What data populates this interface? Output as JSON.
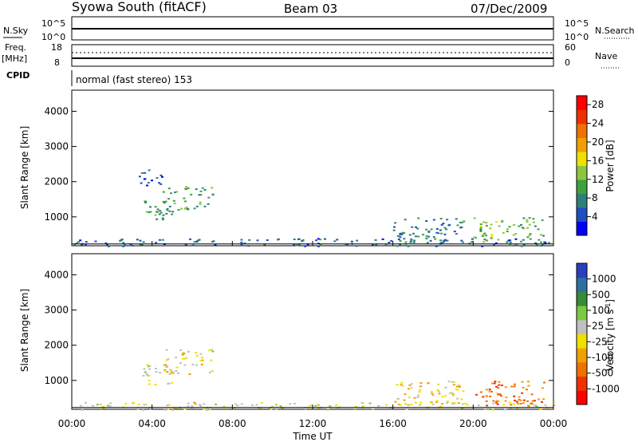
{
  "header": {
    "station": "Syowa South (fitACF)",
    "beam": "Beam 03",
    "date": "07/Dec/2009"
  },
  "strips": {
    "nsky_label": "N.Sky",
    "nsky_ticks": [
      "10^5",
      "10^0"
    ],
    "nsearch_label": "N.Search",
    "nsearch_ticks": [
      "10^5",
      "10^0"
    ],
    "freq_label": "Freq.",
    "freq_unit": "[MHz]",
    "freq_ticks": [
      "18",
      "8"
    ],
    "nave_label": "Nave",
    "nave_ticks": [
      "60",
      "0"
    ],
    "cpid_label": "CPID",
    "cpid_text": "normal (fast stereo) 153"
  },
  "colors": {
    "power": [
      "#0000ff",
      "#1f4fc0",
      "#2e7f7a",
      "#3fa040",
      "#8cc63f",
      "#f0e000",
      "#f0a000",
      "#f07000",
      "#f03000",
      "#ff0000"
    ],
    "velocity": [
      "#2a3fbf",
      "#2e6fa0",
      "#3a8a3a",
      "#7cc840",
      "#c0c0c0",
      "#f0e000",
      "#f0a000",
      "#f07000",
      "#f03000",
      "#ff0000"
    ]
  },
  "chart_data": [
    {
      "type": "heatmap",
      "variable": "Power",
      "xlabel": "Time UT",
      "ylabel": "Slant Range [km]",
      "xlim": [
        "00:00",
        "24:00"
      ],
      "ylim": [
        180,
        4600
      ],
      "x_ticks": [
        "00:00",
        "04:00",
        "08:00",
        "12:00",
        "16:00",
        "20:00",
        "00:00"
      ],
      "y_ticks": [
        1000,
        2000,
        3000,
        4000
      ],
      "colorbar": {
        "label": "Power [dB]",
        "ticks": [
          "4",
          "8",
          "12",
          "16",
          "20",
          "24",
          "28"
        ],
        "range": [
          0,
          30
        ]
      },
      "regions": [
        {
          "t": [
            3.5,
            5.0
          ],
          "r": [
            900,
            1500
          ],
          "value": 10
        },
        {
          "t": [
            4.5,
            7.0
          ],
          "r": [
            1200,
            1900
          ],
          "value": 10
        },
        {
          "t": [
            3.3,
            4.5
          ],
          "r": [
            1900,
            2400
          ],
          "value": 6
        },
        {
          "t": [
            16.0,
            19.5
          ],
          "r": [
            300,
            1000
          ],
          "value": 8
        },
        {
          "t": [
            20.0,
            23.5
          ],
          "r": [
            300,
            1000
          ],
          "value": 12
        },
        {
          "t": [
            0.0,
            24.0
          ],
          "r": [
            180,
            400
          ],
          "value": 6
        }
      ]
    },
    {
      "type": "heatmap",
      "variable": "Velocity",
      "xlabel": "Time UT",
      "ylabel": "Slant Range [km]",
      "xlim": [
        "00:00",
        "24:00"
      ],
      "ylim": [
        180,
        4600
      ],
      "x_ticks": [
        "00:00",
        "04:00",
        "08:00",
        "12:00",
        "16:00",
        "20:00",
        "00:00"
      ],
      "y_ticks": [
        1000,
        2000,
        3000,
        4000
      ],
      "colorbar": {
        "label": "Velocity [m s^-1]",
        "ticks": [
          "1000",
          "500",
          "100",
          "25",
          "-25",
          "-100",
          "-500",
          "-1000"
        ],
        "range": [
          -1000,
          1000
        ]
      },
      "regions": [
        {
          "t": [
            3.5,
            5.0
          ],
          "r": [
            900,
            1500
          ],
          "value": 100
        },
        {
          "t": [
            4.5,
            7.0
          ],
          "r": [
            1200,
            1900
          ],
          "value": -25
        },
        {
          "t": [
            16.0,
            19.5
          ],
          "r": [
            300,
            1000
          ],
          "value": -100
        },
        {
          "t": [
            20.0,
            23.5
          ],
          "r": [
            300,
            1000
          ],
          "value": -500
        },
        {
          "t": [
            0.0,
            24.0
          ],
          "r": [
            180,
            400
          ],
          "value": 25
        }
      ]
    }
  ]
}
